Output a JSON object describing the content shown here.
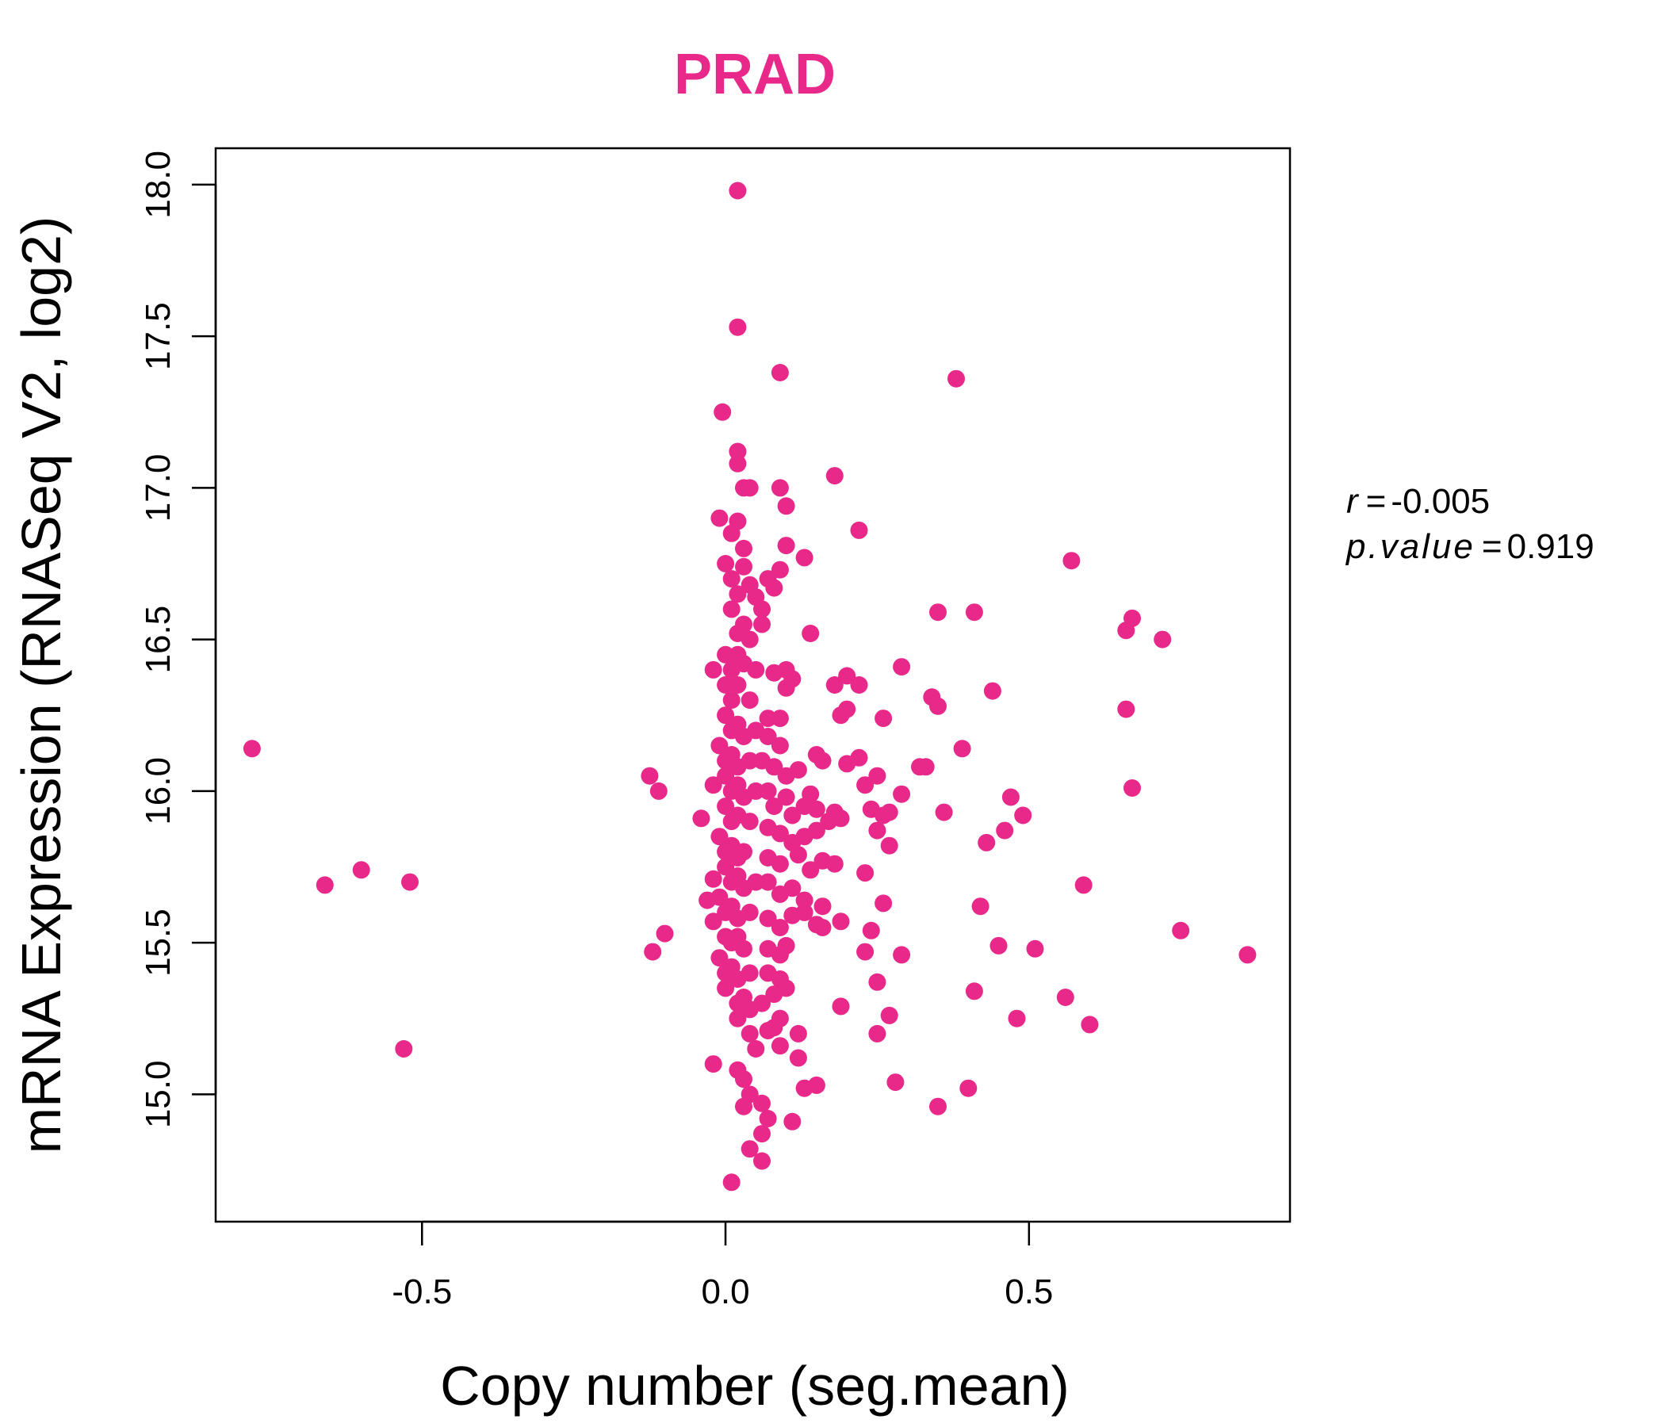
{
  "chart_data": {
    "type": "scatter",
    "title": "PRAD",
    "xlabel": "Copy number (seg.mean)",
    "ylabel": "mRNA Expression (RNASeq V2, log2)",
    "xlim": [
      -0.84,
      0.93
    ],
    "ylim": [
      14.58,
      18.12
    ],
    "x_ticks": [
      "-0.5",
      "0.0",
      "0.5"
    ],
    "y_ticks": [
      "15.0",
      "15.5",
      "16.0",
      "16.5",
      "17.0",
      "17.5",
      "18.0"
    ],
    "grid": false,
    "point_color": "#e8298a",
    "annotations": {
      "r_label": "r",
      "r_value": "-0.005",
      "p_label": "p.value",
      "p_value": "0.919"
    },
    "points": [
      [
        -0.78,
        16.14
      ],
      [
        -0.66,
        15.69
      ],
      [
        -0.6,
        15.74
      ],
      [
        -0.52,
        15.7
      ],
      [
        -0.53,
        15.15
      ],
      [
        -0.125,
        16.05
      ],
      [
        -0.11,
        16.0
      ],
      [
        -0.12,
        15.47
      ],
      [
        -0.1,
        15.53
      ],
      [
        -0.04,
        15.91
      ],
      [
        -0.03,
        15.64
      ],
      [
        -0.02,
        15.71
      ],
      [
        -0.02,
        15.1
      ],
      [
        0.02,
        17.98
      ],
      [
        0.02,
        17.53
      ],
      [
        0.09,
        17.38
      ],
      [
        -0.005,
        17.25
      ],
      [
        0.02,
        17.12
      ],
      [
        0.02,
        17.08
      ],
      [
        0.03,
        17.0
      ],
      [
        0.04,
        17.0
      ],
      [
        -0.01,
        16.9
      ],
      [
        0.01,
        16.85
      ],
      [
        0.02,
        16.89
      ],
      [
        0.03,
        16.8
      ],
      [
        0.0,
        16.75
      ],
      [
        0.01,
        16.7
      ],
      [
        0.03,
        16.74
      ],
      [
        0.04,
        16.68
      ],
      [
        0.05,
        16.64
      ],
      [
        0.06,
        16.6
      ],
      [
        0.02,
        16.65
      ],
      [
        0.01,
        16.6
      ],
      [
        0.03,
        16.55
      ],
      [
        0.02,
        16.52
      ],
      [
        0.04,
        16.5
      ],
      [
        0.0,
        16.45
      ],
      [
        0.01,
        16.4
      ],
      [
        0.02,
        16.45
      ],
      [
        0.03,
        16.42
      ],
      [
        0.05,
        16.4
      ],
      [
        -0.02,
        16.4
      ],
      [
        0.0,
        16.35
      ],
      [
        0.01,
        16.3
      ],
      [
        0.02,
        16.35
      ],
      [
        0.04,
        16.3
      ],
      [
        0.0,
        16.25
      ],
      [
        0.01,
        16.2
      ],
      [
        0.02,
        16.22
      ],
      [
        0.03,
        16.18
      ],
      [
        0.05,
        16.2
      ],
      [
        -0.01,
        16.15
      ],
      [
        0.0,
        16.1
      ],
      [
        0.01,
        16.12
      ],
      [
        0.02,
        16.08
      ],
      [
        0.04,
        16.1
      ],
      [
        0.0,
        16.05
      ],
      [
        0.01,
        16.0
      ],
      [
        0.02,
        16.02
      ],
      [
        0.03,
        15.98
      ],
      [
        0.05,
        16.0
      ],
      [
        -0.02,
        16.02
      ],
      [
        0.0,
        15.95
      ],
      [
        0.01,
        15.9
      ],
      [
        0.02,
        15.92
      ],
      [
        0.04,
        15.9
      ],
      [
        -0.01,
        15.85
      ],
      [
        0.0,
        15.8
      ],
      [
        0.01,
        15.82
      ],
      [
        0.02,
        15.78
      ],
      [
        0.03,
        15.8
      ],
      [
        0.0,
        15.75
      ],
      [
        0.01,
        15.7
      ],
      [
        0.02,
        15.72
      ],
      [
        0.03,
        15.68
      ],
      [
        0.05,
        15.7
      ],
      [
        -0.01,
        15.65
      ],
      [
        0.0,
        15.6
      ],
      [
        0.01,
        15.62
      ],
      [
        0.02,
        15.58
      ],
      [
        0.04,
        15.6
      ],
      [
        -0.02,
        15.57
      ],
      [
        0.0,
        15.52
      ],
      [
        0.01,
        15.5
      ],
      [
        0.02,
        15.52
      ],
      [
        0.03,
        15.48
      ],
      [
        -0.01,
        15.45
      ],
      [
        0.0,
        15.4
      ],
      [
        0.01,
        15.42
      ],
      [
        0.02,
        15.38
      ],
      [
        0.04,
        15.4
      ],
      [
        0.0,
        15.35
      ],
      [
        0.02,
        15.3
      ],
      [
        0.03,
        15.32
      ],
      [
        0.04,
        15.28
      ],
      [
        0.06,
        15.3
      ],
      [
        0.02,
        15.25
      ],
      [
        0.04,
        15.2
      ],
      [
        0.05,
        15.15
      ],
      [
        0.02,
        15.08
      ],
      [
        0.03,
        15.05
      ],
      [
        0.04,
        15.0
      ],
      [
        0.03,
        14.96
      ],
      [
        0.06,
        14.97
      ],
      [
        0.07,
        14.92
      ],
      [
        0.06,
        14.87
      ],
      [
        0.04,
        14.82
      ],
      [
        0.06,
        14.78
      ],
      [
        0.01,
        14.71
      ],
      [
        0.06,
        16.55
      ],
      [
        0.07,
        16.7
      ],
      [
        0.08,
        16.67
      ],
      [
        0.09,
        16.73
      ],
      [
        0.1,
        16.81
      ],
      [
        0.1,
        16.94
      ],
      [
        0.09,
        17.0
      ],
      [
        0.13,
        16.77
      ],
      [
        0.08,
        16.39
      ],
      [
        0.1,
        16.4
      ],
      [
        0.1,
        16.34
      ],
      [
        0.11,
        16.37
      ],
      [
        0.14,
        16.52
      ],
      [
        0.07,
        16.24
      ],
      [
        0.09,
        16.24
      ],
      [
        0.07,
        16.18
      ],
      [
        0.09,
        16.15
      ],
      [
        0.06,
        16.1
      ],
      [
        0.08,
        16.08
      ],
      [
        0.1,
        16.05
      ],
      [
        0.12,
        16.07
      ],
      [
        0.15,
        16.12
      ],
      [
        0.16,
        16.1
      ],
      [
        0.07,
        16.0
      ],
      [
        0.08,
        15.95
      ],
      [
        0.1,
        15.98
      ],
      [
        0.11,
        15.92
      ],
      [
        0.13,
        15.95
      ],
      [
        0.14,
        15.99
      ],
      [
        0.15,
        15.94
      ],
      [
        0.07,
        15.88
      ],
      [
        0.09,
        15.86
      ],
      [
        0.11,
        15.83
      ],
      [
        0.13,
        15.85
      ],
      [
        0.15,
        15.87
      ],
      [
        0.17,
        15.9
      ],
      [
        0.18,
        15.93
      ],
      [
        0.19,
        15.91
      ],
      [
        0.07,
        15.78
      ],
      [
        0.09,
        15.76
      ],
      [
        0.12,
        15.79
      ],
      [
        0.14,
        15.74
      ],
      [
        0.16,
        15.77
      ],
      [
        0.18,
        15.76
      ],
      [
        0.07,
        15.7
      ],
      [
        0.09,
        15.66
      ],
      [
        0.11,
        15.68
      ],
      [
        0.13,
        15.64
      ],
      [
        0.16,
        15.62
      ],
      [
        0.07,
        15.58
      ],
      [
        0.09,
        15.55
      ],
      [
        0.11,
        15.59
      ],
      [
        0.13,
        15.6
      ],
      [
        0.15,
        15.56
      ],
      [
        0.16,
        15.55
      ],
      [
        0.19,
        15.57
      ],
      [
        0.07,
        15.48
      ],
      [
        0.09,
        15.46
      ],
      [
        0.1,
        15.49
      ],
      [
        0.07,
        15.4
      ],
      [
        0.09,
        15.38
      ],
      [
        0.08,
        15.33
      ],
      [
        0.1,
        15.35
      ],
      [
        0.09,
        15.25
      ],
      [
        0.08,
        15.22
      ],
      [
        0.07,
        15.21
      ],
      [
        0.09,
        15.16
      ],
      [
        0.12,
        15.2
      ],
      [
        0.12,
        15.12
      ],
      [
        0.13,
        15.02
      ],
      [
        0.15,
        15.03
      ],
      [
        0.11,
        14.91
      ],
      [
        0.18,
        17.04
      ],
      [
        0.22,
        16.86
      ],
      [
        0.18,
        16.35
      ],
      [
        0.2,
        16.38
      ],
      [
        0.22,
        16.35
      ],
      [
        0.29,
        16.41
      ],
      [
        0.19,
        16.25
      ],
      [
        0.2,
        16.27
      ],
      [
        0.26,
        16.24
      ],
      [
        0.2,
        16.09
      ],
      [
        0.22,
        16.11
      ],
      [
        0.23,
        16.02
      ],
      [
        0.25,
        16.05
      ],
      [
        0.24,
        15.94
      ],
      [
        0.26,
        15.92
      ],
      [
        0.27,
        15.93
      ],
      [
        0.29,
        15.99
      ],
      [
        0.25,
        15.87
      ],
      [
        0.27,
        15.82
      ],
      [
        0.23,
        15.73
      ],
      [
        0.26,
        15.63
      ],
      [
        0.24,
        15.54
      ],
      [
        0.23,
        15.47
      ],
      [
        0.29,
        15.46
      ],
      [
        0.25,
        15.37
      ],
      [
        0.19,
        15.29
      ],
      [
        0.27,
        15.26
      ],
      [
        0.25,
        15.2
      ],
      [
        0.28,
        15.04
      ],
      [
        0.38,
        17.36
      ],
      [
        0.35,
        16.59
      ],
      [
        0.41,
        16.59
      ],
      [
        0.34,
        16.31
      ],
      [
        0.35,
        16.28
      ],
      [
        0.44,
        16.33
      ],
      [
        0.32,
        16.08
      ],
      [
        0.33,
        16.08
      ],
      [
        0.39,
        16.14
      ],
      [
        0.36,
        15.93
      ],
      [
        0.47,
        15.98
      ],
      [
        0.49,
        15.92
      ],
      [
        0.46,
        15.87
      ],
      [
        0.43,
        15.83
      ],
      [
        0.42,
        15.62
      ],
      [
        0.45,
        15.49
      ],
      [
        0.51,
        15.48
      ],
      [
        0.41,
        15.34
      ],
      [
        0.48,
        15.25
      ],
      [
        0.35,
        14.96
      ],
      [
        0.4,
        15.02
      ],
      [
        0.57,
        16.76
      ],
      [
        0.66,
        16.53
      ],
      [
        0.67,
        16.57
      ],
      [
        0.72,
        16.5
      ],
      [
        0.66,
        16.27
      ],
      [
        0.67,
        16.01
      ],
      [
        0.59,
        15.69
      ],
      [
        0.75,
        15.54
      ],
      [
        0.86,
        15.46
      ],
      [
        0.56,
        15.32
      ],
      [
        0.6,
        15.23
      ]
    ]
  }
}
